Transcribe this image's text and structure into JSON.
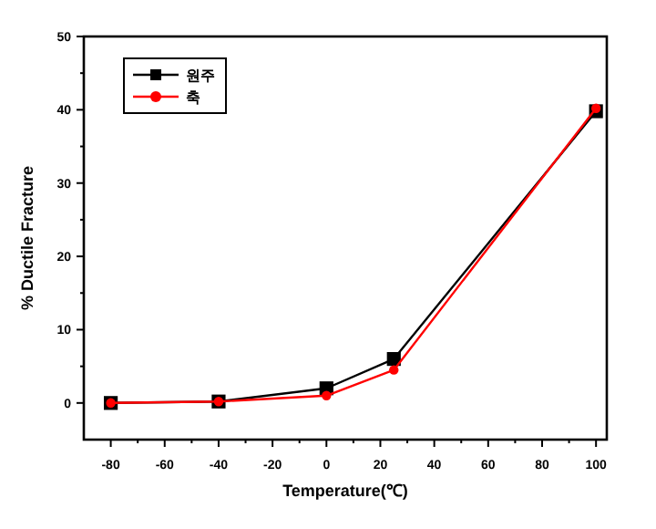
{
  "chart_data": {
    "type": "line",
    "xlabel": "Temperature(℃)",
    "ylabel": "% Ductile Fracture",
    "x": [
      -80,
      -40,
      0,
      25,
      100
    ],
    "series": [
      {
        "name": "원주",
        "color": "#000000",
        "marker": "square",
        "values": [
          0,
          0.2,
          2,
          6,
          39.8
        ]
      },
      {
        "name": "축",
        "color": "#ff0000",
        "marker": "circle",
        "values": [
          0,
          0.2,
          1,
          4.5,
          40.2
        ]
      }
    ],
    "xlim": [
      -90,
      104
    ],
    "xticks": [
      -80,
      -60,
      -40,
      -20,
      0,
      20,
      40,
      60,
      80,
      100
    ],
    "ylim": [
      -5,
      50
    ],
    "yticks": [
      0,
      10,
      20,
      30,
      40,
      50
    ],
    "legend": "top left",
    "grid": false
  }
}
